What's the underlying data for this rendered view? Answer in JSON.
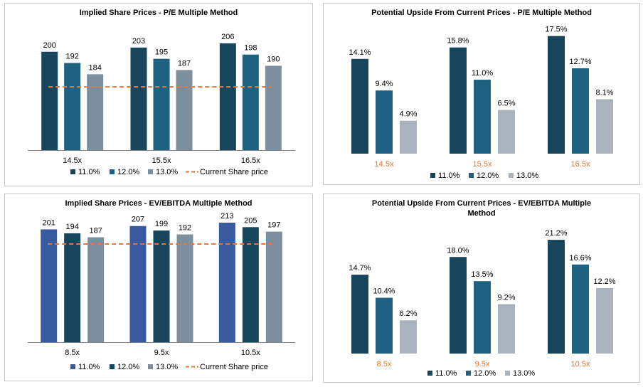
{
  "colors": {
    "s1_dark": "#17465c",
    "s2_teal": "#1f6180",
    "s3_grey": "#7d8f9e",
    "s3_light": "#a9b3bf",
    "blue": "#3a5aa0",
    "dash_orange": "#ef7530",
    "cat_orange": "#e8732a"
  },
  "chart_data": [
    {
      "type": "bar",
      "title": "Implied Share Prices - P/E Multiple Method",
      "categories": [
        "14.5x",
        "15.5x",
        "16.5x"
      ],
      "series": [
        {
          "name": "11.0%",
          "values": [
            200,
            203,
            206
          ],
          "color": "#17465c"
        },
        {
          "name": "12.0%",
          "values": [
            192,
            195,
            198
          ],
          "color": "#1f6180"
        },
        {
          "name": "13.0%",
          "values": [
            184,
            187,
            190
          ],
          "color": "#7d8f9e"
        }
      ],
      "reference_line": {
        "name": "Current Share price",
        "value": 175
      },
      "value_labels": [
        [
          "200",
          "192",
          "184"
        ],
        [
          "203",
          "195",
          "187"
        ],
        [
          "206",
          "198",
          "190"
        ]
      ],
      "ylim": [
        130,
        210
      ],
      "legend": "bottom",
      "grid": false
    },
    {
      "type": "bar",
      "title": "Potential Upside From Current Prices - P/E Multiple Method",
      "categories": [
        "14.5x",
        "15.5x",
        "16.5x"
      ],
      "series": [
        {
          "name": "11.0%",
          "values": [
            14.1,
            15.8,
            17.5
          ],
          "color": "#17465c"
        },
        {
          "name": "12.0%",
          "values": [
            9.4,
            11.0,
            12.7
          ],
          "color": "#1f6180"
        },
        {
          "name": "13.0%",
          "values": [
            4.9,
            6.5,
            8.1
          ],
          "color": "#a9b3bf"
        }
      ],
      "value_labels": [
        [
          "14.1%",
          "9.4%",
          "4.9%"
        ],
        [
          "15.8%",
          "11.0%",
          "6.5%"
        ],
        [
          "17.5%",
          "12.7%",
          "8.1%"
        ]
      ],
      "ylim": [
        0,
        20
      ],
      "legend": "bottom",
      "grid": false
    },
    {
      "type": "bar",
      "title": "Implied Share Prices - EV/EBITDA Multiple Method",
      "categories": [
        "8.5x",
        "9.5x",
        "10.5x"
      ],
      "series": [
        {
          "name": "11.0%",
          "values": [
            201,
            207,
            213
          ],
          "color": "#3a5aa0"
        },
        {
          "name": "12.0%",
          "values": [
            194,
            199,
            205
          ],
          "color": "#17465c"
        },
        {
          "name": "13.0%",
          "values": [
            187,
            192,
            197
          ],
          "color": "#7d8f9e"
        }
      ],
      "reference_line": {
        "name": "Current Share price",
        "value": 175
      },
      "value_labels": [
        [
          "201",
          "194",
          "187"
        ],
        [
          "207",
          "199",
          "192"
        ],
        [
          "213",
          "205",
          "197"
        ]
      ],
      "ylim": [
        0,
        232
      ],
      "legend": "bottom",
      "grid": false
    },
    {
      "type": "bar",
      "title": "Potential Upside From Current Prices - EV/EBITDA Multiple Method",
      "categories": [
        "8.5x",
        "9.5x",
        "10.5x"
      ],
      "series": [
        {
          "name": "11.0%",
          "values": [
            14.7,
            18.0,
            21.2
          ],
          "color": "#17465c"
        },
        {
          "name": "12.0%",
          "values": [
            10.4,
            13.5,
            16.6
          ],
          "color": "#1f6180"
        },
        {
          "name": "13.0%",
          "values": [
            6.2,
            9.2,
            12.2
          ],
          "color": "#a9b3bf"
        }
      ],
      "value_labels": [
        [
          "14.7%",
          "10.4%",
          "6.2%"
        ],
        [
          "18.0%",
          "13.5%",
          "9.2%"
        ],
        [
          "21.2%",
          "16.6%",
          "12.2%"
        ]
      ],
      "ylim": [
        0,
        24
      ],
      "legend": "bottom",
      "grid": false
    }
  ]
}
